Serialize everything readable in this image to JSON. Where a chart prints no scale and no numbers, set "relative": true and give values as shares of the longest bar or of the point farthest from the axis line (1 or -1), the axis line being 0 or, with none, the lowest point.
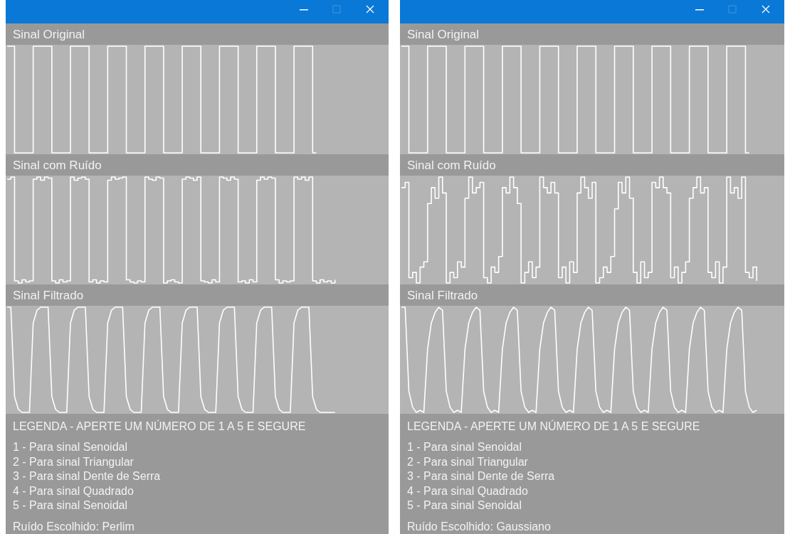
{
  "chart_data": [
    {
      "type": "step",
      "title": "Sinal Original",
      "relative": true,
      "categories": [
        null,
        null,
        null,
        null,
        null,
        null,
        null,
        null,
        null,
        null,
        null,
        null,
        null,
        null,
        null,
        null,
        null,
        null,
        null,
        null,
        null,
        null,
        null,
        null,
        null,
        null,
        null,
        null,
        null,
        null,
        null,
        null,
        null,
        null,
        null,
        null,
        null,
        null,
        null,
        null,
        null,
        null,
        null,
        null,
        null,
        null,
        null,
        null,
        null,
        null,
        null,
        null,
        null,
        null,
        null,
        null,
        null,
        null,
        null,
        null,
        null,
        null,
        null,
        null,
        null,
        null,
        null,
        null,
        null,
        null,
        null,
        null,
        null,
        null,
        null,
        null,
        null,
        null,
        null,
        null,
        null,
        null,
        null,
        null,
        null,
        null,
        null,
        null,
        null,
        null,
        null,
        null,
        null,
        null,
        null,
        null,
        null,
        null,
        null,
        null,
        null,
        null,
        null
      ],
      "series": [
        {
          "color": "#ffffff",
          "values": [
            1,
            1,
            0,
            0,
            0,
            0,
            0,
            1,
            1,
            1,
            1,
            1,
            0,
            0,
            0,
            0,
            0,
            1,
            1,
            1,
            1,
            1,
            0,
            0,
            0,
            0,
            0,
            1,
            1,
            1,
            1,
            1,
            0,
            0,
            0,
            0,
            0,
            1,
            1,
            1,
            1,
            1,
            0,
            0,
            0,
            0,
            0,
            1,
            1,
            1,
            1,
            1,
            0,
            0,
            0,
            0,
            0,
            1,
            1,
            1,
            1,
            1,
            0,
            0,
            0,
            0,
            0,
            1,
            1,
            1,
            1,
            1,
            0,
            0,
            0,
            0,
            0,
            1,
            1,
            1,
            1,
            1,
            0,
            0,
            null,
            null,
            null,
            null,
            null,
            null,
            null,
            null,
            null,
            null,
            null,
            null,
            null,
            null,
            null,
            null,
            null,
            null,
            null
          ]
        }
      ]
    },
    {
      "type": "step",
      "title": "Sinal com Ruído",
      "relative": true,
      "categories": [
        null,
        null,
        null,
        null,
        null,
        null,
        null,
        null,
        null,
        null,
        null,
        null,
        null,
        null,
        null,
        null,
        null,
        null,
        null,
        null,
        null,
        null,
        null,
        null,
        null,
        null,
        null,
        null,
        null,
        null,
        null,
        null,
        null,
        null,
        null,
        null,
        null,
        null,
        null,
        null,
        null,
        null,
        null,
        null,
        null,
        null,
        null,
        null,
        null,
        null,
        null,
        null,
        null,
        null,
        null,
        null,
        null,
        null,
        null,
        null,
        null,
        null,
        null,
        null,
        null,
        null,
        null,
        null,
        null,
        null,
        null,
        null,
        null,
        null,
        null,
        null,
        null,
        null,
        null,
        null,
        null,
        null,
        null,
        null,
        null,
        null,
        null,
        null,
        null,
        null,
        null,
        null,
        null,
        null,
        null,
        null,
        null,
        null,
        null,
        null,
        null,
        null,
        null
      ],
      "series": [
        {
          "color": "#ffffff",
          "values": [
            0.98,
            1,
            0.02,
            0,
            0.03,
            0.01,
            0.02,
            0.98,
            1,
            0.97,
            1,
            0.99,
            0.02,
            0,
            0.03,
            0.01,
            0.02,
            1,
            0.97,
            0.99,
            1,
            0.98,
            0.01,
            0.03,
            0,
            0.02,
            0.01,
            0.97,
            1,
            0.98,
            0.99,
            1,
            0.03,
            0.01,
            0,
            0.02,
            0.01,
            1,
            0.98,
            0.97,
            1,
            0.99,
            0,
            0.02,
            0.03,
            0.01,
            0,
            0.98,
            1,
            0.99,
            0.97,
            1,
            0.02,
            0.01,
            0,
            0.03,
            0.01,
            1,
            0.99,
            0.97,
            1,
            0.98,
            0.01,
            0.02,
            0,
            0.03,
            0.01,
            0.97,
            1,
            0.98,
            1,
            0.99,
            0.03,
            0,
            0.02,
            0.01,
            0.02,
            1,
            0.98,
            1,
            0.97,
            1,
            0.02,
            0,
            0.03,
            0.01,
            0.02,
            0,
            0.03,
            null,
            null,
            null,
            null,
            null,
            null,
            null,
            null,
            null,
            null,
            null,
            null,
            null,
            null
          ]
        }
      ]
    },
    {
      "type": "line",
      "title": "Sinal Filtrado",
      "relative": true,
      "categories": [
        null,
        null,
        null,
        null,
        null,
        null,
        null,
        null,
        null,
        null,
        null,
        null,
        null,
        null,
        null,
        null,
        null,
        null,
        null,
        null,
        null,
        null,
        null,
        null,
        null,
        null,
        null,
        null,
        null,
        null,
        null,
        null,
        null,
        null,
        null,
        null,
        null,
        null,
        null,
        null,
        null,
        null,
        null,
        null,
        null,
        null,
        null,
        null,
        null,
        null,
        null,
        null,
        null,
        null,
        null,
        null,
        null,
        null,
        null,
        null,
        null,
        null,
        null,
        null,
        null,
        null,
        null,
        null,
        null,
        null,
        null,
        null,
        null,
        null,
        null,
        null,
        null,
        null,
        null,
        null,
        null,
        null,
        null,
        null,
        null,
        null,
        null,
        null,
        null,
        null,
        null,
        null,
        null,
        null,
        null,
        null,
        null,
        null,
        null,
        null,
        null,
        null,
        null
      ],
      "series": [
        {
          "color": "#ffffff",
          "values": [
            1,
            1,
            0.15,
            0.03,
            0,
            0,
            0,
            0.85,
            0.97,
            1,
            1,
            1,
            0.15,
            0.03,
            0,
            0,
            0,
            0.85,
            0.97,
            1,
            1,
            1,
            0.15,
            0.03,
            0,
            0,
            0,
            0.85,
            0.97,
            1,
            1,
            1,
            0.15,
            0.03,
            0,
            0,
            0,
            0.85,
            0.97,
            1,
            1,
            1,
            0.15,
            0.03,
            0,
            0,
            0,
            0.85,
            0.97,
            1,
            1,
            1,
            0.15,
            0.03,
            0,
            0,
            0,
            0.85,
            0.97,
            1,
            1,
            1,
            0.15,
            0.03,
            0,
            0,
            0,
            0.85,
            0.97,
            1,
            1,
            1,
            0.15,
            0.03,
            0,
            0,
            0,
            0.85,
            0.97,
            1,
            1,
            1,
            0.15,
            0.03,
            0,
            0,
            0,
            0,
            0,
            null,
            null,
            null,
            null,
            null,
            null,
            null,
            null,
            null,
            null,
            null,
            null,
            null,
            null
          ]
        }
      ]
    },
    {
      "type": "other",
      "title": "LEGENDA - APERTE UM NÚMERO DE 1 A 5 E SEGURE",
      "annotations": [
        "1 - Para sinal Senoidal",
        "2 - Para sinal Triangular",
        "3 - Para sinal Dente de Serra",
        "4 - Para sinal Quadrado",
        "5 - Para sinal Senoidal",
        "Ruído Escolhido: Perlim"
      ]
    },
    {
      "type": "step",
      "title": "Sinal Original",
      "relative": true,
      "categories": [
        null,
        null,
        null,
        null,
        null,
        null,
        null,
        null,
        null,
        null,
        null,
        null,
        null,
        null,
        null,
        null,
        null,
        null,
        null,
        null,
        null,
        null,
        null,
        null,
        null,
        null,
        null,
        null,
        null,
        null,
        null,
        null,
        null,
        null,
        null,
        null,
        null,
        null,
        null,
        null,
        null,
        null,
        null,
        null,
        null,
        null,
        null,
        null,
        null,
        null,
        null,
        null,
        null,
        null,
        null,
        null,
        null,
        null,
        null,
        null,
        null,
        null,
        null,
        null,
        null,
        null,
        null,
        null,
        null,
        null,
        null,
        null,
        null,
        null,
        null,
        null,
        null,
        null,
        null,
        null,
        null,
        null,
        null,
        null,
        null,
        null,
        null,
        null,
        null,
        null,
        null,
        null,
        null,
        null,
        null,
        null,
        null,
        null,
        null,
        null,
        null,
        null,
        null
      ],
      "series": [
        {
          "color": "#ffffff",
          "values": [
            1,
            1,
            0,
            0,
            0,
            0,
            0,
            1,
            1,
            1,
            1,
            1,
            0,
            0,
            0,
            0,
            0,
            1,
            1,
            1,
            1,
            1,
            0,
            0,
            0,
            0,
            0,
            1,
            1,
            1,
            1,
            1,
            0,
            0,
            0,
            0,
            0,
            1,
            1,
            1,
            1,
            1,
            0,
            0,
            0,
            0,
            0,
            1,
            1,
            1,
            1,
            1,
            0,
            0,
            0,
            0,
            0,
            1,
            1,
            1,
            1,
            1,
            0,
            0,
            0,
            0,
            0,
            1,
            1,
            1,
            1,
            1,
            0,
            0,
            0,
            0,
            0,
            1,
            1,
            1,
            1,
            1,
            0,
            0,
            0,
            0,
            0,
            1,
            1,
            1,
            1,
            1,
            0,
            0,
            null,
            null,
            null,
            null,
            null,
            null,
            null,
            null,
            null
          ]
        }
      ]
    },
    {
      "type": "step",
      "title": "Sinal com Ruído",
      "relative": true,
      "categories": [
        null,
        null,
        null,
        null,
        null,
        null,
        null,
        null,
        null,
        null,
        null,
        null,
        null,
        null,
        null,
        null,
        null,
        null,
        null,
        null,
        null,
        null,
        null,
        null,
        null,
        null,
        null,
        null,
        null,
        null,
        null,
        null,
        null,
        null,
        null,
        null,
        null,
        null,
        null,
        null,
        null,
        null,
        null,
        null,
        null,
        null,
        null,
        null,
        null,
        null,
        null,
        null,
        null,
        null,
        null,
        null,
        null,
        null,
        null,
        null,
        null,
        null,
        null,
        null,
        null,
        null,
        null,
        null,
        null,
        null,
        null,
        null,
        null,
        null,
        null,
        null,
        null,
        null,
        null,
        null,
        null,
        null,
        null,
        null,
        null,
        null,
        null,
        null,
        null,
        null,
        null,
        null,
        null,
        null,
        null,
        null,
        null,
        null,
        null,
        null,
        null,
        null,
        null
      ],
      "series": [
        {
          "color": "#ffffff",
          "values": [
            0.9,
            0.95,
            0.05,
            0.1,
            0,
            0.15,
            0.2,
            0.75,
            0.9,
            0.8,
            1,
            0.85,
            0,
            0.1,
            0.05,
            0.2,
            0.15,
            0.8,
            1,
            0.85,
            0.9,
            0.95,
            0.05,
            0,
            0.15,
            0.1,
            0.25,
            0.9,
            0.85,
            1,
            0.9,
            0.75,
            0,
            0.1,
            0.2,
            0.05,
            0.15,
            1,
            0.9,
            0.85,
            0.95,
            0.85,
            0.05,
            0.15,
            0,
            0.2,
            0.1,
            0.85,
            1,
            0.9,
            0.8,
            0.95,
            0,
            0.05,
            0.15,
            0.1,
            0.25,
            0.7,
            0.95,
            0.85,
            1,
            0.8,
            0.1,
            0,
            0.2,
            0.05,
            0.1,
            0.95,
            0.9,
            1,
            0.9,
            0.85,
            0.05,
            0.15,
            0,
            0.1,
            0.2,
            0.8,
            0.9,
            1,
            0.85,
            0.9,
            0.1,
            0.05,
            0.2,
            0,
            0.15,
            1,
            0.85,
            0.9,
            0.8,
            1,
            0.1,
            0.05,
            0.15,
            0.02,
            null,
            null,
            null,
            null,
            null,
            null,
            null
          ]
        }
      ]
    },
    {
      "type": "line",
      "title": "Sinal Filtrado",
      "relative": true,
      "categories": [
        null,
        null,
        null,
        null,
        null,
        null,
        null,
        null,
        null,
        null,
        null,
        null,
        null,
        null,
        null,
        null,
        null,
        null,
        null,
        null,
        null,
        null,
        null,
        null,
        null,
        null,
        null,
        null,
        null,
        null,
        null,
        null,
        null,
        null,
        null,
        null,
        null,
        null,
        null,
        null,
        null,
        null,
        null,
        null,
        null,
        null,
        null,
        null,
        null,
        null,
        null,
        null,
        null,
        null,
        null,
        null,
        null,
        null,
        null,
        null,
        null,
        null,
        null,
        null,
        null,
        null,
        null,
        null,
        null,
        null,
        null,
        null,
        null,
        null,
        null,
        null,
        null,
        null,
        null,
        null,
        null,
        null,
        null,
        null,
        null,
        null,
        null,
        null,
        null,
        null,
        null,
        null,
        null,
        null,
        null,
        null,
        null,
        null,
        null,
        null,
        null,
        null,
        null
      ],
      "series": [
        {
          "color": "#ffffff",
          "values": [
            1,
            1,
            0.2,
            0.05,
            0,
            0.02,
            0,
            0.6,
            0.85,
            0.95,
            1,
            0.97,
            0.2,
            0.05,
            0,
            0.02,
            0,
            0.6,
            0.85,
            0.95,
            1,
            0.97,
            0.2,
            0.05,
            0,
            0.02,
            0,
            0.6,
            0.85,
            0.95,
            1,
            0.97,
            0.2,
            0.05,
            0,
            0.02,
            0,
            0.6,
            0.85,
            0.95,
            1,
            0.97,
            0.2,
            0.05,
            0,
            0.02,
            0,
            0.6,
            0.85,
            0.95,
            1,
            0.97,
            0.2,
            0.05,
            0,
            0.02,
            0,
            0.6,
            0.85,
            0.95,
            1,
            0.97,
            0.2,
            0.05,
            0,
            0.02,
            0,
            0.6,
            0.85,
            0.95,
            1,
            0.97,
            0.2,
            0.05,
            0,
            0.02,
            0,
            0.6,
            0.85,
            0.95,
            1,
            0.97,
            0.2,
            0.05,
            0,
            0.02,
            0,
            0.6,
            0.85,
            0.95,
            1,
            0.97,
            0.2,
            0.05,
            0,
            0.02,
            null,
            null,
            null,
            null,
            null,
            null,
            null
          ]
        }
      ]
    },
    {
      "type": "other",
      "title": "LEGENDA - APERTE UM NÚMERO DE 1 A 5 E SEGURE",
      "annotations": [
        "1 - Para sinal Senoidal",
        "2 - Para sinal Triangular",
        "3 - Para sinal Dente de Serra",
        "4 - Para sinal Quadrado",
        "5 - Para sinal Senoidal",
        "Ruído Escolhido: Gaussiano"
      ]
    }
  ]
}
